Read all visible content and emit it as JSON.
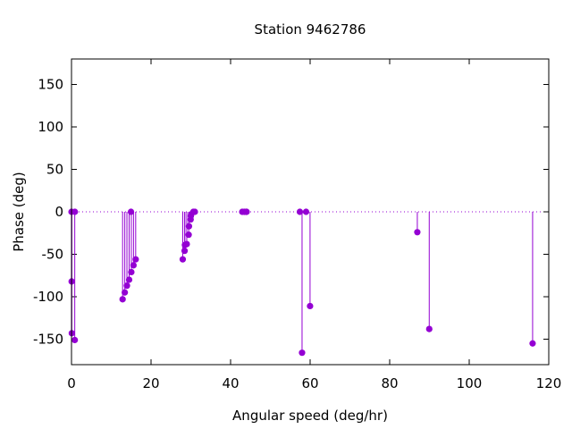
{
  "chart_data": {
    "type": "scatter",
    "style": "impulses-with-points",
    "title": "Station 9462786",
    "xlabel": "Angular speed (deg/hr)",
    "ylabel": "Phase (deg)",
    "xlim": [
      0,
      120
    ],
    "ylim": [
      -180,
      180
    ],
    "xticks": [
      0,
      20,
      40,
      60,
      80,
      100,
      120
    ],
    "yticks": [
      -150,
      -100,
      -50,
      0,
      50,
      100,
      150
    ],
    "zero_line": "dotted",
    "grid": false,
    "color": "#9400d3",
    "x": [
      0.0,
      0.04,
      0.08,
      0.82,
      0.85,
      12.85,
      13.4,
      13.94,
      14.49,
      14.96,
      15.04,
      15.59,
      16.14,
      27.97,
      28.44,
      28.51,
      28.98,
      29.46,
      29.53,
      29.96,
      30.0,
      30.08,
      30.63,
      31.02,
      42.93,
      43.48,
      43.94,
      44.03,
      57.42,
      57.97,
      58.98,
      59.98,
      86.95,
      89.95,
      115.94
    ],
    "y": [
      0,
      -82,
      -143,
      -151,
      0,
      -103,
      -95,
      -87,
      -80,
      0,
      -71,
      -63,
      -56,
      -56,
      -46,
      -39,
      -38,
      -27,
      -17,
      -9,
      -5,
      -3,
      0,
      0,
      0,
      0,
      0,
      0,
      0,
      -166,
      0,
      -111,
      -24,
      -138,
      -155
    ],
    "series": [
      {
        "x": [
          0.0,
          0.04,
          0.08,
          0.82,
          0.85,
          12.85,
          13.4,
          13.94,
          14.49,
          14.96,
          15.04,
          15.59,
          16.14,
          27.97,
          28.44,
          28.51,
          28.98,
          29.46,
          29.53,
          29.96,
          30.0,
          30.08,
          30.63,
          31.02,
          42.93,
          43.48,
          43.94,
          44.03,
          57.42,
          57.97,
          58.98,
          59.98,
          86.95,
          89.95,
          115.94
        ],
        "y": [
          0,
          -82,
          -143,
          -151,
          0,
          -103,
          -95,
          -87,
          -80,
          0,
          -71,
          -63,
          -56,
          -56,
          -46,
          -39,
          -38,
          -27,
          -17,
          -9,
          -5,
          -3,
          0,
          0,
          0,
          0,
          0,
          0,
          0,
          -166,
          0,
          -111,
          -24,
          -138,
          -155
        ]
      }
    ]
  }
}
